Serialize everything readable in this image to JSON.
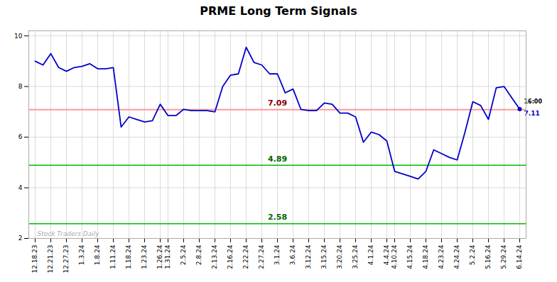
{
  "chart_data": {
    "type": "line",
    "title": "PRME Long Term Signals",
    "categories": [
      "12.18.23",
      null,
      "12.21.23",
      null,
      "12.27.23",
      null,
      "1.3.24",
      null,
      "1.8.24",
      null,
      "1.11.24",
      null,
      "1.18.24",
      null,
      "1.23.24",
      null,
      "1.26.24",
      "1.31.24",
      null,
      "2.5.24",
      null,
      "2.8.24",
      null,
      "2.13.24",
      null,
      "2.16.24",
      null,
      "2.22.24",
      null,
      "2.27.24",
      null,
      "3.1.24",
      null,
      "3.6.24",
      null,
      "3.12.24",
      null,
      "3.15.24",
      null,
      "3.20.24",
      null,
      "3.25.24",
      null,
      "4.1.24",
      null,
      "4.4.24",
      "4.10.24",
      null,
      "4.15.24",
      null,
      "4.18.24",
      null,
      "4.23.24",
      null,
      "4.24.24",
      null,
      "5.2.24",
      null,
      "5.16.24",
      null,
      "5.29.24",
      null,
      "6.14.24"
    ],
    "values": [
      9.0,
      8.85,
      9.3,
      8.75,
      8.6,
      8.75,
      8.8,
      8.9,
      8.7,
      8.7,
      8.75,
      6.4,
      6.8,
      6.7,
      6.6,
      6.65,
      7.3,
      6.85,
      6.85,
      7.1,
      7.05,
      7.05,
      7.05,
      7.0,
      8.0,
      8.45,
      8.5,
      9.55,
      8.95,
      8.85,
      8.5,
      8.5,
      7.75,
      7.9,
      7.1,
      7.05,
      7.05,
      7.35,
      7.3,
      6.95,
      6.95,
      6.8,
      5.8,
      6.2,
      6.1,
      5.85,
      4.65,
      4.55,
      4.45,
      4.35,
      4.65,
      5.5,
      5.35,
      5.2,
      5.1,
      6.2,
      7.4,
      7.25,
      6.7,
      7.95,
      8.0,
      7.55,
      7.11
    ],
    "color": "#0000cc",
    "last_point": {
      "value": 7.11,
      "time_label": "16:00",
      "time_color": "#000000",
      "value_label": "7.11"
    },
    "hlines": [
      {
        "y": 7.09,
        "color": "#ff9999",
        "label": "7.09",
        "label_color": "#8b0000"
      },
      {
        "y": 4.89,
        "color": "#00bb00",
        "label": "4.89",
        "label_color": "#006600"
      },
      {
        "y": 2.58,
        "color": "#00bb00",
        "label": "2.58",
        "label_color": "#006600"
      },
      {
        "y": 2.0,
        "color": "#222222"
      }
    ],
    "watermark": {
      "text": "Stock Traders Daily",
      "color": "gray"
    },
    "ylim": [
      2.0,
      10.2
    ],
    "yticks": [
      2,
      4,
      6,
      8,
      10
    ],
    "grid": true,
    "grid_color": "#cccccc",
    "background_color": "#ffffff"
  }
}
